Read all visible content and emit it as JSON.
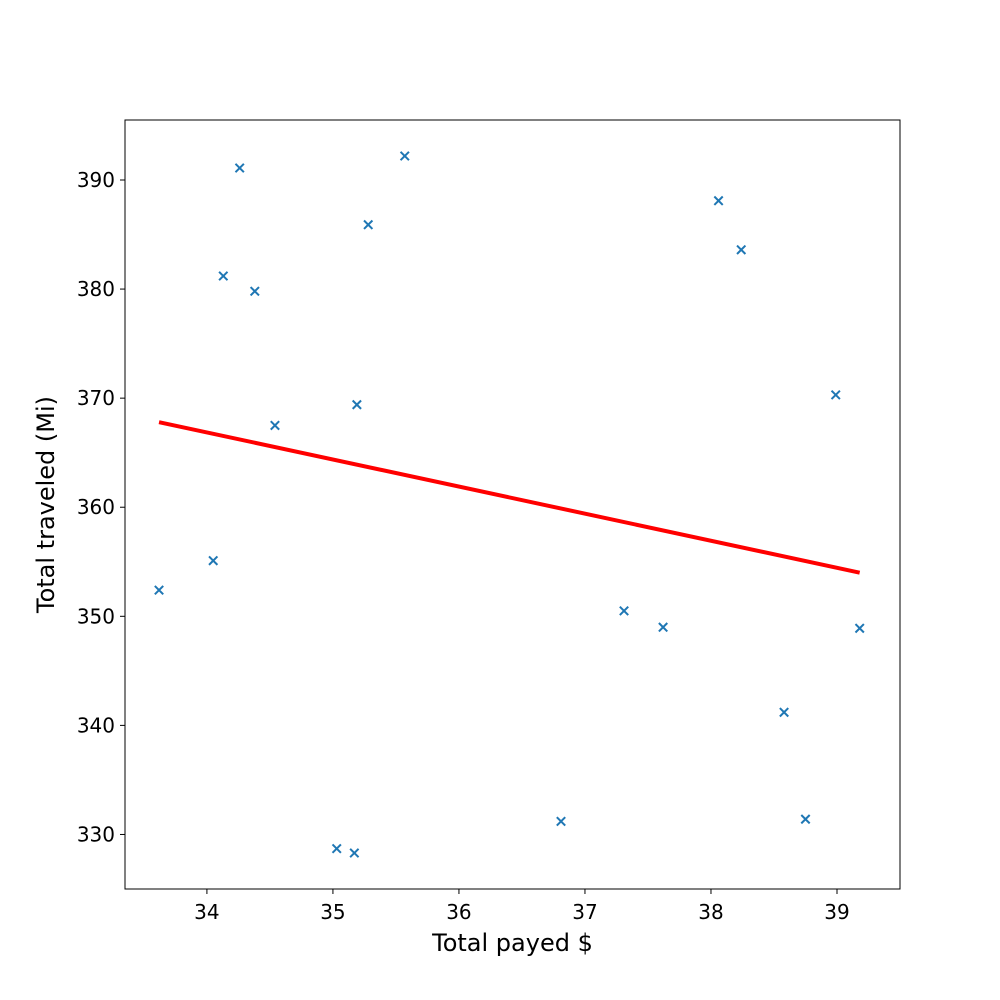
{
  "chart_data": {
    "type": "scatter",
    "xlabel": "Total payed $",
    "ylabel": "Total traveled (Mi)",
    "xlim": [
      33.35,
      39.5
    ],
    "ylim": [
      325,
      395.5
    ],
    "xticks": [
      34,
      35,
      36,
      37,
      38,
      39
    ],
    "yticks": [
      330,
      340,
      350,
      360,
      370,
      380,
      390
    ],
    "grid": false,
    "legend": "none",
    "series": [
      {
        "marker": "x",
        "color": "#1f77b4",
        "points": [
          {
            "x": 33.62,
            "y": 352.4
          },
          {
            "x": 34.05,
            "y": 355.1
          },
          {
            "x": 34.13,
            "y": 381.2
          },
          {
            "x": 34.26,
            "y": 391.1
          },
          {
            "x": 34.38,
            "y": 379.8
          },
          {
            "x": 34.54,
            "y": 367.5
          },
          {
            "x": 35.03,
            "y": 328.7
          },
          {
            "x": 35.17,
            "y": 328.3
          },
          {
            "x": 35.19,
            "y": 369.4
          },
          {
            "x": 35.28,
            "y": 385.9
          },
          {
            "x": 35.57,
            "y": 392.2
          },
          {
            "x": 36.81,
            "y": 331.2
          },
          {
            "x": 37.31,
            "y": 350.5
          },
          {
            "x": 37.62,
            "y": 349.0
          },
          {
            "x": 38.06,
            "y": 388.1
          },
          {
            "x": 38.24,
            "y": 383.6
          },
          {
            "x": 38.58,
            "y": 341.2
          },
          {
            "x": 38.75,
            "y": 331.4
          },
          {
            "x": 38.99,
            "y": 370.3
          },
          {
            "x": 39.18,
            "y": 348.9
          }
        ]
      }
    ],
    "trend_line": {
      "color": "#ff0000",
      "x": [
        33.62,
        39.18
      ],
      "y": [
        367.8,
        354.0
      ]
    }
  }
}
